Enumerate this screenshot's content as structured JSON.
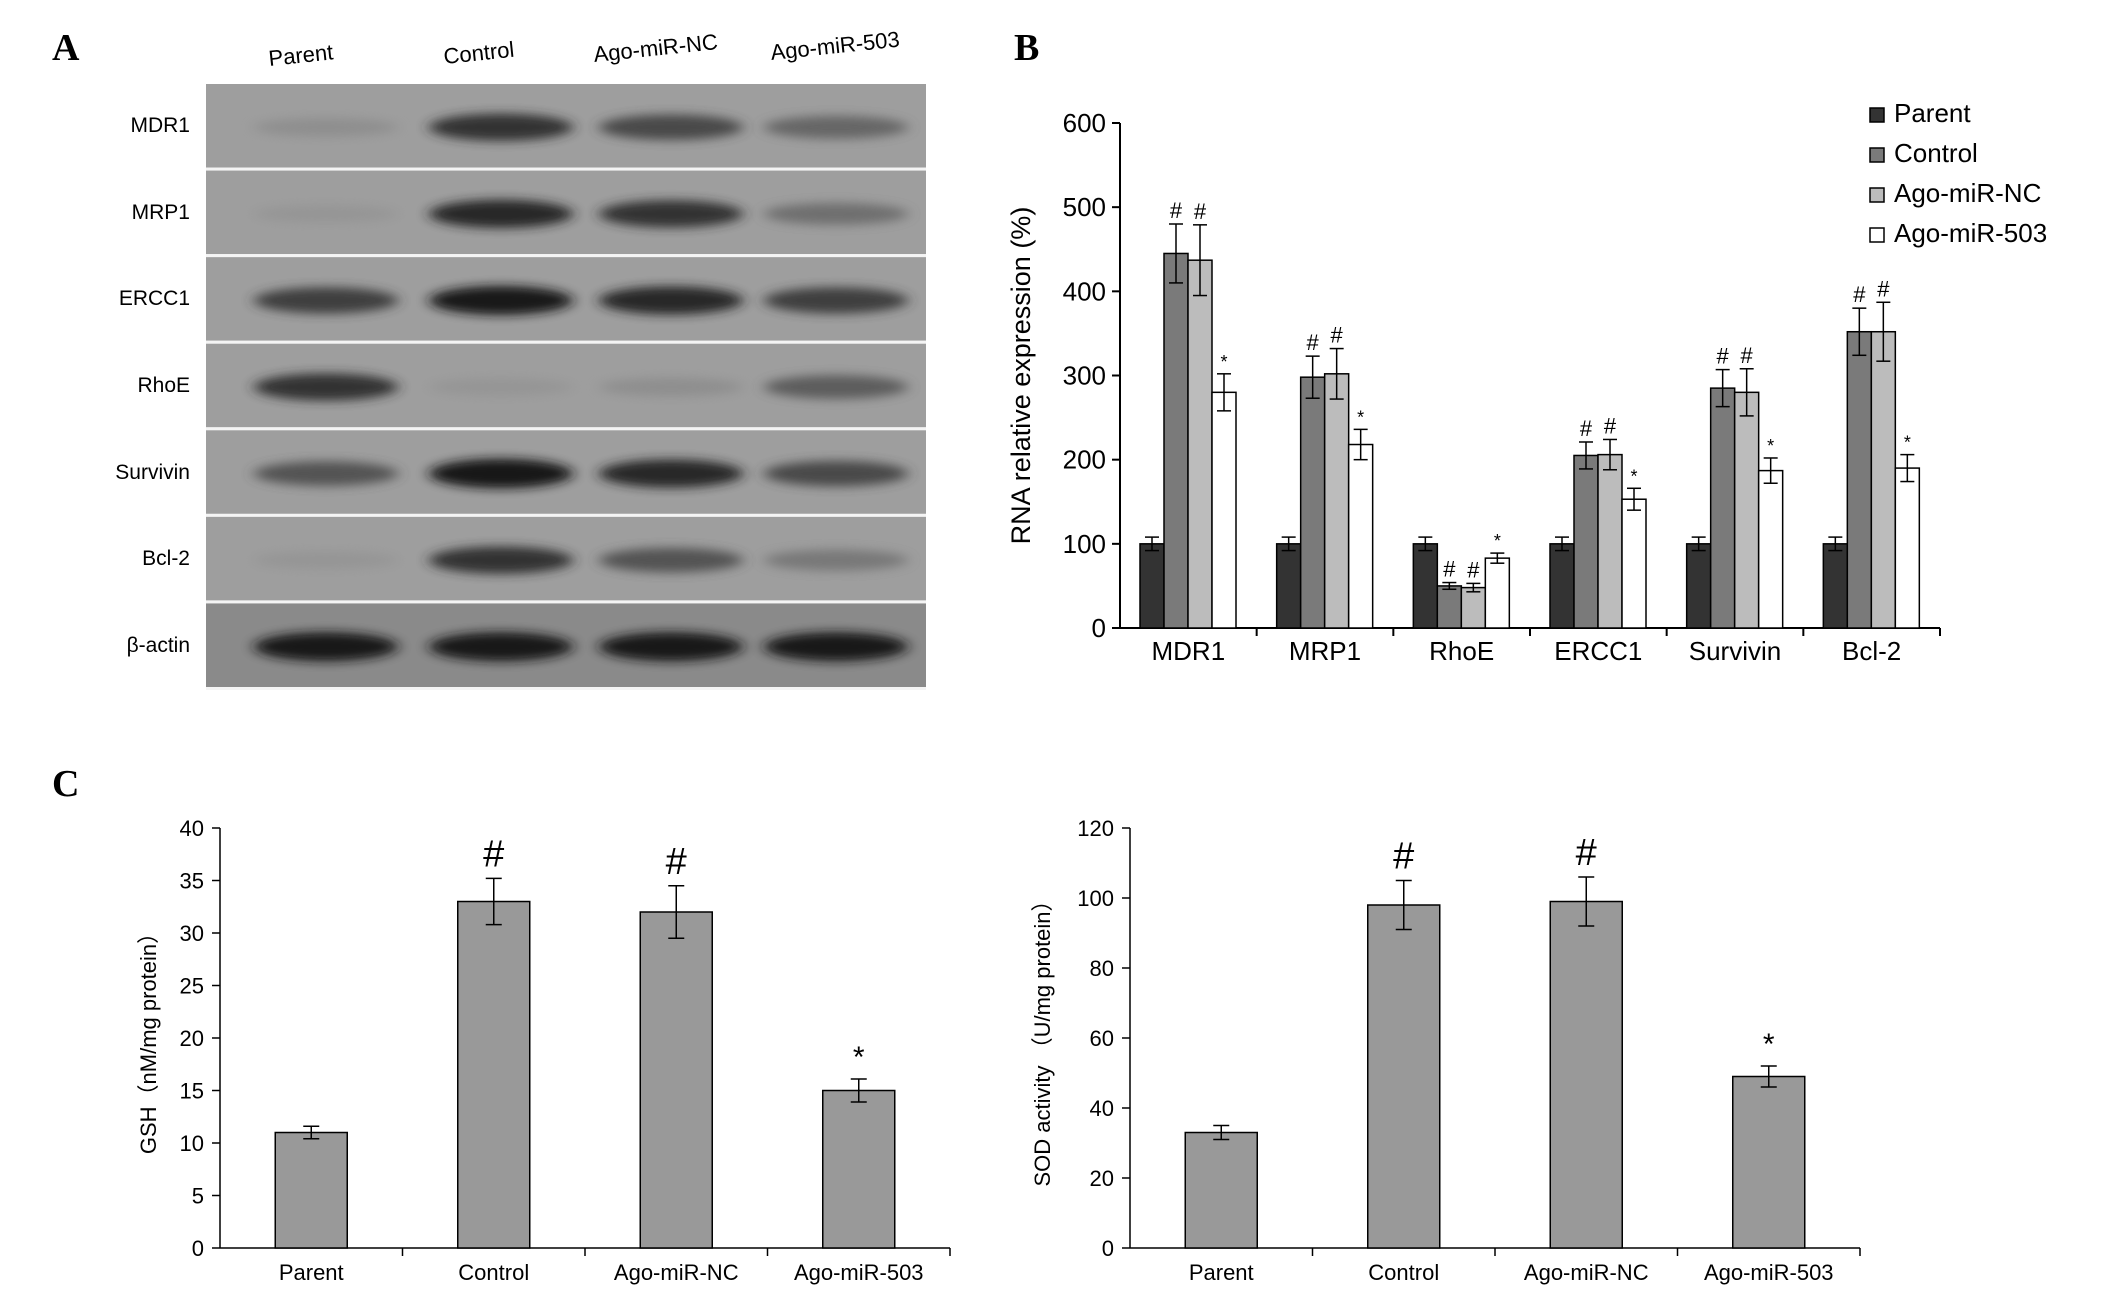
{
  "panels": {
    "a": "A",
    "b": "B",
    "c": "C"
  },
  "blot": {
    "lanes": [
      "Parent",
      "Control",
      "Ago-miR-NC",
      "Ago-miR-503"
    ],
    "rows": [
      {
        "label": "MDR1",
        "intensity": [
          0.35,
          0.85,
          0.75,
          0.6
        ]
      },
      {
        "label": "MRP1",
        "intensity": [
          0.3,
          0.9,
          0.85,
          0.55
        ]
      },
      {
        "label": "ERCC1",
        "intensity": [
          0.8,
          0.95,
          0.9,
          0.8
        ]
      },
      {
        "label": "RhoE",
        "intensity": [
          0.85,
          0.3,
          0.35,
          0.65
        ]
      },
      {
        "label": "Survivin",
        "intensity": [
          0.7,
          0.98,
          0.9,
          0.75
        ]
      },
      {
        "label": "Bcl-2",
        "intensity": [
          0.3,
          0.85,
          0.7,
          0.5
        ]
      },
      {
        "label": "β-actin",
        "intensity": [
          0.95,
          0.95,
          0.95,
          0.95
        ]
      }
    ]
  },
  "chart_data": [
    {
      "type": "bar",
      "ylabel": "RNA relative expression (%)",
      "ylim": [
        0,
        600
      ],
      "yticks": [
        "0",
        "100",
        "200",
        "300",
        "400",
        "500",
        "600"
      ],
      "categories": [
        "MDR1",
        "MRP1",
        "RhoE",
        "ERCC1",
        "Survivin",
        "Bcl-2"
      ],
      "legend_position": "top-right",
      "series": [
        {
          "name": "Parent",
          "color": "#333333",
          "values": [
            100,
            100,
            100,
            100,
            100,
            100
          ],
          "errors": [
            8,
            8,
            8,
            8,
            8,
            8
          ],
          "marks": [
            "",
            "",
            "",
            "",
            "",
            ""
          ]
        },
        {
          "name": "Control",
          "color": "#7a7a7a",
          "values": [
            445,
            298,
            50,
            205,
            285,
            352
          ],
          "errors": [
            35,
            25,
            4,
            16,
            22,
            28
          ],
          "marks": [
            "#",
            "#",
            "#",
            "#",
            "#",
            "#"
          ]
        },
        {
          "name": "Ago-miR-NC",
          "color": "#bcbcbc",
          "values": [
            437,
            302,
            48,
            206,
            280,
            352
          ],
          "errors": [
            42,
            30,
            5,
            18,
            28,
            35
          ],
          "marks": [
            "#",
            "#",
            "#",
            "#",
            "#",
            "#"
          ]
        },
        {
          "name": "Ago-miR-503",
          "color": "#ffffff",
          "values": [
            280,
            218,
            83,
            153,
            187,
            190
          ],
          "errors": [
            22,
            18,
            6,
            13,
            15,
            16
          ],
          "marks": [
            "*",
            "*",
            "*",
            "*",
            "*",
            "*"
          ]
        }
      ]
    },
    {
      "type": "bar",
      "ylabel": "GSH（nM/mg protein）",
      "ylim": [
        0,
        40
      ],
      "yticks": [
        "0",
        "5",
        "10",
        "15",
        "20",
        "25",
        "30",
        "35",
        "40"
      ],
      "categories": [
        "Parent",
        "Control",
        "Ago-miR-NC",
        "Ago-miR-503"
      ],
      "color": "#999999",
      "values": [
        11,
        33,
        32,
        15
      ],
      "errors": [
        0.6,
        2.2,
        2.5,
        1.1
      ],
      "marks": [
        "",
        "#",
        "#",
        "*"
      ]
    },
    {
      "type": "bar",
      "ylabel": "SOD activity （U/mg protein）",
      "ylim": [
        0,
        120
      ],
      "yticks": [
        "0",
        "20",
        "40",
        "60",
        "80",
        "100",
        "120"
      ],
      "categories": [
        "Parent",
        "Control",
        "Ago-miR-NC",
        "Ago-miR-503"
      ],
      "color": "#999999",
      "values": [
        33,
        98,
        99,
        49
      ],
      "errors": [
        2,
        7,
        7,
        3
      ],
      "marks": [
        "",
        "#",
        "#",
        "*"
      ]
    }
  ]
}
